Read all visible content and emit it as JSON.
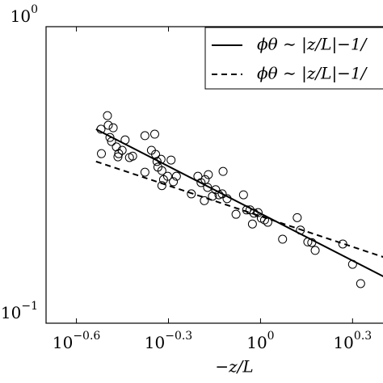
{
  "chart_data": {
    "type": "scatter",
    "xlabel": "−z/L",
    "xscale": "log",
    "yscale": "log",
    "xlim": [
      0.2,
      2.6
    ],
    "ylim": [
      0.1,
      1
    ],
    "xticks": [
      {
        "value": 0.2512,
        "label": "10",
        "exponent": "−0.6"
      },
      {
        "value": 0.5012,
        "label": "10",
        "exponent": "−0.3"
      },
      {
        "value": 1,
        "label": "10",
        "exponent": "0"
      },
      {
        "value": 1.995,
        "label": "10",
        "exponent": "0.3"
      }
    ],
    "yticks": [
      {
        "value": 1,
        "label": "10",
        "exponent": "0"
      },
      {
        "value": 0.1,
        "label": "10",
        "exponent": "−1"
      }
    ],
    "legend": "upper right",
    "points": {
      "color": "#000000",
      "x": [
        0.302,
        0.317,
        0.319,
        0.331,
        0.323,
        0.327,
        0.339,
        0.345,
        0.362,
        0.354,
        0.383,
        0.374,
        0.303,
        0.343,
        0.42,
        0.452,
        0.441,
        0.455,
        0.46,
        0.474,
        0.511,
        0.477,
        0.463,
        0.483,
        0.42,
        0.532,
        0.52,
        0.498,
        0.625,
        0.66,
        0.672,
        0.676,
        0.64,
        0.714,
        0.697,
        0.732,
        0.755,
        0.75,
        0.656,
        0.595,
        0.778,
        0.88,
        0.924,
        0.832,
        0.952,
        0.982,
        1.006,
        1.031,
        1.056,
        0.941,
        0.901,
        1.317,
        1.18,
        1.349,
        1.426,
        1.469,
        1.507,
        1.854,
        1.995,
        2.12,
        0.477
      ],
      "values": [
        0.451,
        0.501,
        0.465,
        0.456,
        0.423,
        0.41,
        0.393,
        0.373,
        0.415,
        0.383,
        0.366,
        0.362,
        0.373,
        0.364,
        0.429,
        0.434,
        0.383,
        0.371,
        0.351,
        0.357,
        0.355,
        0.327,
        0.336,
        0.305,
        0.323,
        0.313,
        0.3,
        0.313,
        0.313,
        0.305,
        0.287,
        0.317,
        0.298,
        0.282,
        0.268,
        0.271,
        0.325,
        0.273,
        0.259,
        0.273,
        0.263,
        0.271,
        0.241,
        0.233,
        0.235,
        0.236,
        0.226,
        0.223,
        0.219,
        0.216,
        0.241,
        0.227,
        0.192,
        0.206,
        0.188,
        0.187,
        0.176,
        0.185,
        0.158,
        0.136,
        0.291
      ]
    },
    "series": [
      {
        "name": "ϕθ ∼ |z/L|−1/",
        "color": "#000000",
        "style": "solid",
        "x": [
          0.291,
          2.61
        ],
        "values": [
          0.451,
          0.141
        ]
      },
      {
        "name": "ϕθ ∼ |z/L|−1/",
        "color": "#000000",
        "style": "dashed",
        "x": [
          0.291,
          2.61
        ],
        "values": [
          0.351,
          0.165
        ]
      }
    ]
  }
}
